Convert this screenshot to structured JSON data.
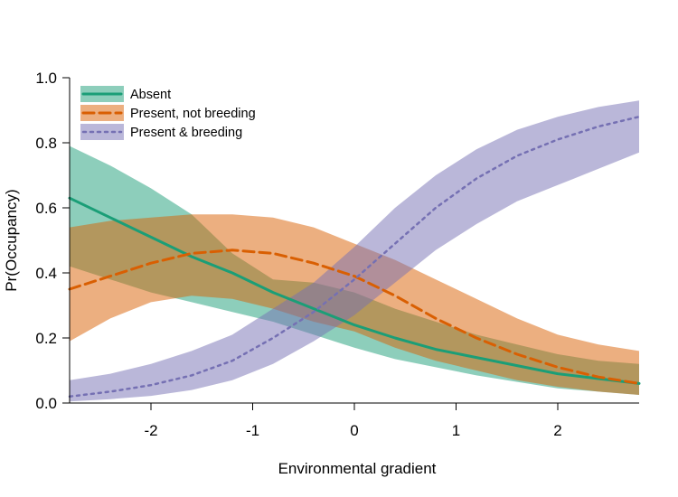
{
  "chart_data": {
    "type": "line",
    "xlabel": "Environmental gradient",
    "ylabel": "Pr(Occupancy)",
    "xlim": [
      -2.8,
      2.8
    ],
    "ylim": [
      0,
      1
    ],
    "x_ticks": [
      -2,
      -1,
      0,
      1,
      2
    ],
    "x_tick_labels": [
      "-2",
      "-1",
      "0",
      "1",
      "2"
    ],
    "y_ticks": [
      0,
      0.2,
      0.4,
      0.6,
      0.8,
      1.0
    ],
    "y_tick_labels": [
      "0.0",
      "0.2",
      "0.4",
      "0.6",
      "0.8",
      "1.0"
    ],
    "grid": false,
    "legend_position": "top-left",
    "x": [
      -2.8,
      -2.4,
      -2.0,
      -1.6,
      -1.2,
      -0.8,
      -0.4,
      0.0,
      0.4,
      0.8,
      1.2,
      1.6,
      2.0,
      2.4,
      2.8
    ],
    "series": [
      {
        "name": "Absent",
        "color": "#1b9e77",
        "band_color": "#8ccfb8",
        "line_style": "solid",
        "values": [
          0.63,
          0.57,
          0.51,
          0.45,
          0.4,
          0.34,
          0.29,
          0.24,
          0.2,
          0.165,
          0.14,
          0.115,
          0.09,
          0.075,
          0.06
        ],
        "lower": [
          0.42,
          0.38,
          0.34,
          0.31,
          0.28,
          0.25,
          0.21,
          0.17,
          0.135,
          0.11,
          0.085,
          0.065,
          0.045,
          0.035,
          0.025
        ],
        "upper": [
          0.79,
          0.73,
          0.66,
          0.58,
          0.46,
          0.38,
          0.37,
          0.34,
          0.29,
          0.25,
          0.21,
          0.18,
          0.15,
          0.13,
          0.12
        ]
      },
      {
        "name": "Present, not breeding",
        "color": "#d95f02",
        "band_color": "#ecaa80",
        "line_style": "dashed",
        "values": [
          0.35,
          0.39,
          0.43,
          0.46,
          0.47,
          0.46,
          0.43,
          0.39,
          0.33,
          0.26,
          0.2,
          0.15,
          0.11,
          0.08,
          0.06
        ],
        "lower": [
          0.19,
          0.26,
          0.31,
          0.33,
          0.32,
          0.29,
          0.25,
          0.22,
          0.17,
          0.13,
          0.1,
          0.07,
          0.05,
          0.035,
          0.025
        ],
        "upper": [
          0.54,
          0.56,
          0.57,
          0.58,
          0.58,
          0.57,
          0.54,
          0.49,
          0.44,
          0.38,
          0.32,
          0.26,
          0.21,
          0.18,
          0.16
        ]
      },
      {
        "name": "Present & breeding",
        "color": "#7570b3",
        "band_color": "#b7b5d8",
        "line_style": "dotted",
        "values": [
          0.02,
          0.035,
          0.055,
          0.085,
          0.13,
          0.2,
          0.28,
          0.38,
          0.49,
          0.6,
          0.69,
          0.76,
          0.81,
          0.85,
          0.88
        ],
        "lower": [
          0.005,
          0.012,
          0.022,
          0.04,
          0.07,
          0.12,
          0.19,
          0.27,
          0.37,
          0.47,
          0.55,
          0.62,
          0.67,
          0.72,
          0.77
        ],
        "upper": [
          0.07,
          0.09,
          0.12,
          0.16,
          0.21,
          0.29,
          0.37,
          0.48,
          0.6,
          0.7,
          0.78,
          0.84,
          0.88,
          0.91,
          0.93
        ]
      }
    ]
  }
}
